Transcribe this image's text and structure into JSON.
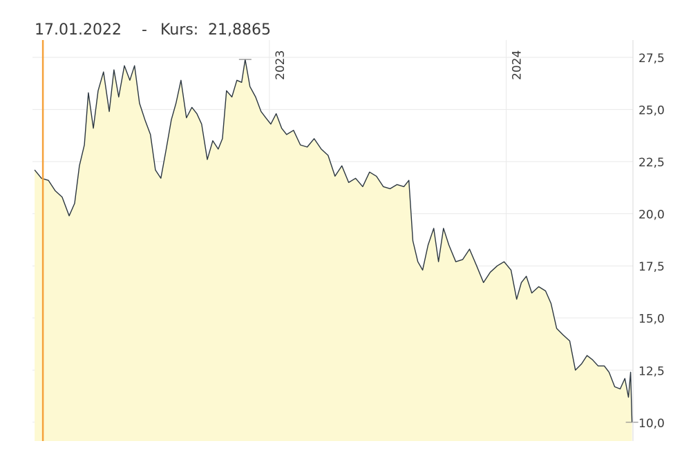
{
  "chart_data": {
    "type": "area",
    "header": {
      "date": "17.01.2022",
      "separator": "-",
      "label": "Kurs:",
      "value": 21.8865,
      "value_label": "21,8865",
      "x": 2022.044
    },
    "series": [
      {
        "color": "#2b3640",
        "fill": "#fdf9d2",
        "x": [
          2022.009,
          2022.038,
          2022.067,
          2022.096,
          2022.125,
          2022.155,
          2022.178,
          2022.198,
          2022.219,
          2022.236,
          2022.257,
          2022.277,
          2022.3,
          2022.324,
          2022.344,
          2022.364,
          2022.388,
          2022.411,
          2022.431,
          2022.452,
          2022.475,
          2022.498,
          2022.519,
          2022.542,
          2022.563,
          2022.586,
          2022.606,
          2022.627,
          2022.65,
          2022.673,
          2022.694,
          2022.714,
          2022.738,
          2022.761,
          2022.784,
          2022.802,
          2022.819,
          2022.842,
          2022.863,
          2022.883,
          2022.898,
          2022.918,
          2022.942,
          2022.965,
          2022.985,
          2023.006,
          2023.029,
          2023.052,
          2023.073,
          2023.102,
          2023.131,
          2023.16,
          2023.189,
          2023.219,
          2023.248,
          2023.277,
          2023.306,
          2023.335,
          2023.364,
          2023.394,
          2023.423,
          2023.452,
          2023.481,
          2023.51,
          2023.539,
          2023.568,
          2023.589,
          2023.606,
          2023.627,
          2023.647,
          2023.67,
          2023.694,
          2023.714,
          2023.735,
          2023.758,
          2023.787,
          2023.816,
          2023.845,
          2023.875,
          2023.904,
          2023.933,
          2023.962,
          2023.991,
          2024.02,
          2024.044,
          2024.064,
          2024.085,
          2024.108,
          2024.137,
          2024.166,
          2024.189,
          2024.213,
          2024.239,
          2024.268,
          2024.292,
          2024.318,
          2024.341,
          2024.364,
          2024.388,
          2024.414,
          2024.434,
          2024.458,
          2024.481,
          2024.501,
          2024.516,
          2024.525,
          2024.531
        ],
        "values": [
          22.1,
          21.7,
          21.6,
          21.1,
          20.8,
          19.9,
          20.5,
          22.3,
          23.3,
          25.8,
          24.1,
          25.9,
          26.8,
          24.9,
          26.9,
          25.6,
          27.1,
          26.4,
          27.1,
          25.3,
          24.5,
          23.8,
          22.1,
          21.7,
          23.0,
          24.5,
          25.3,
          26.4,
          24.6,
          25.1,
          24.8,
          24.3,
          22.6,
          23.5,
          23.1,
          23.6,
          25.9,
          25.6,
          26.4,
          26.3,
          27.4,
          26.1,
          25.6,
          24.9,
          24.6,
          24.3,
          24.8,
          24.1,
          23.8,
          24.0,
          23.3,
          23.2,
          23.6,
          23.1,
          22.8,
          21.8,
          22.3,
          21.5,
          21.7,
          21.3,
          22.0,
          21.8,
          21.3,
          21.2,
          21.4,
          21.3,
          21.6,
          18.7,
          17.7,
          17.3,
          18.5,
          19.3,
          17.7,
          19.3,
          18.5,
          17.7,
          17.8,
          18.3,
          17.5,
          16.7,
          17.2,
          17.5,
          17.7,
          17.3,
          15.9,
          16.7,
          17.0,
          16.2,
          16.5,
          16.3,
          15.7,
          14.5,
          14.2,
          13.9,
          12.5,
          12.8,
          13.2,
          13.0,
          12.7,
          12.7,
          12.4,
          11.7,
          11.6,
          12.1,
          11.2,
          12.4,
          10.0
        ]
      }
    ],
    "xlim": [
      2022,
      2024.535
    ],
    "xticks": [
      2023,
      2024
    ],
    "ylim": [
      9.1,
      27.9
    ],
    "yticks": [
      {
        "value": 10,
        "label": "10,0"
      },
      {
        "value": 12.5,
        "label": "12,5"
      },
      {
        "value": 15,
        "label": "15,0"
      },
      {
        "value": 17.5,
        "label": "17,5"
      },
      {
        "value": 20,
        "label": "20,0"
      },
      {
        "value": 22.5,
        "label": "22,5"
      },
      {
        "value": 25,
        "label": "25,0"
      },
      {
        "value": 27.5,
        "label": "27,5"
      }
    ],
    "cursor_color": "#f5a13a",
    "grid": true
  }
}
